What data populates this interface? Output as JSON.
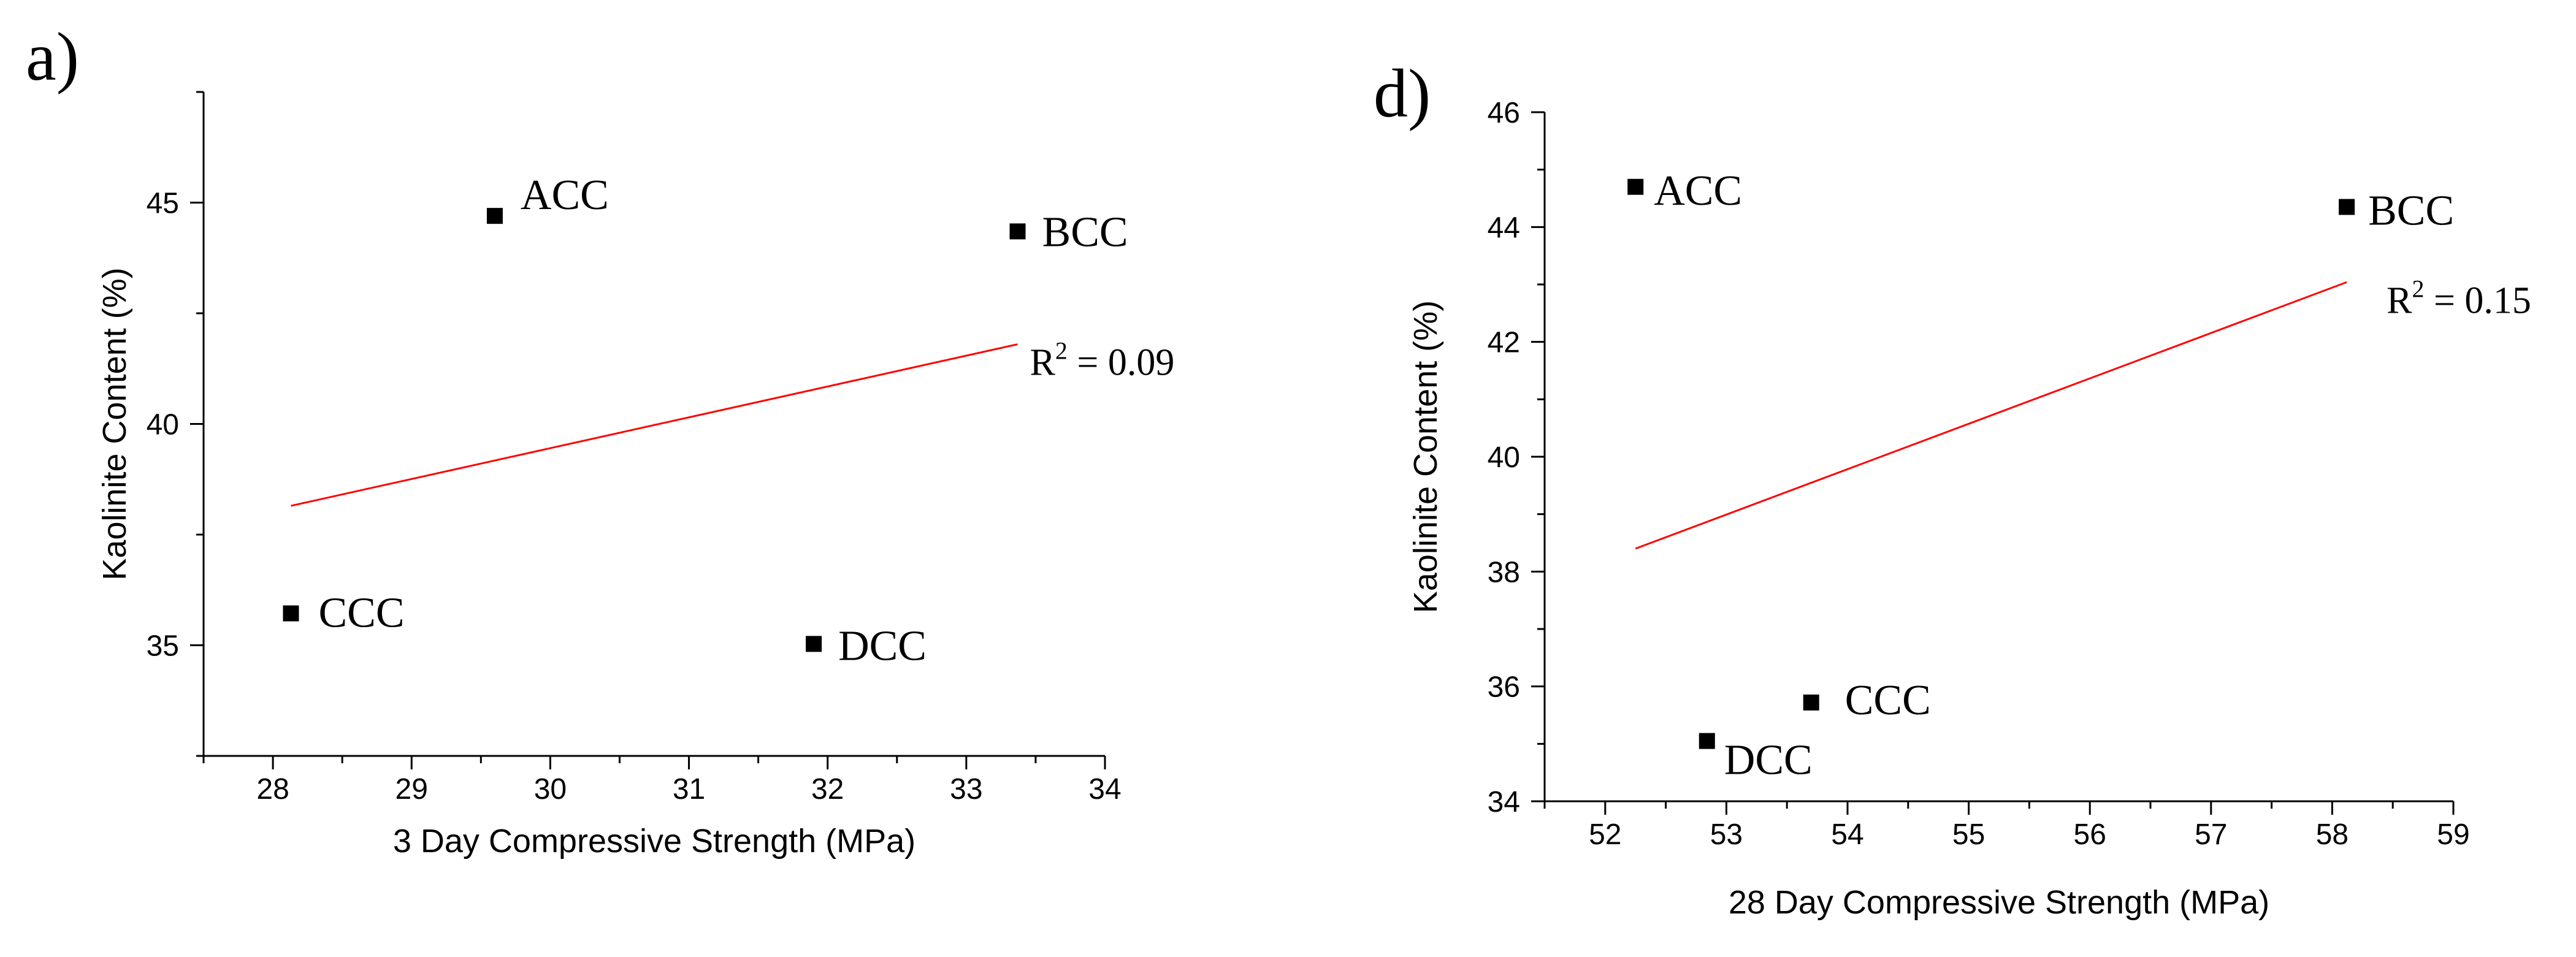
{
  "colors": {
    "trendline": "#ff0000",
    "points": "#000000",
    "axis": "#000000"
  },
  "chart_data": [
    {
      "type": "scatter",
      "panel": "a)",
      "xlabel": "3 Day Compressive Strength (MPa)",
      "ylabel": "Kaolinite Content (%)",
      "xlim": [
        27.5,
        34
      ],
      "ylim": [
        32.5,
        47.5
      ],
      "xticks": [
        28,
        29,
        30,
        31,
        32,
        33,
        34
      ],
      "yticks": [
        35,
        40,
        45
      ],
      "points": [
        {
          "label": "ACC",
          "x": 29.6,
          "y": 44.7
        },
        {
          "label": "BCC",
          "x": 33.37,
          "y": 44.35
        },
        {
          "label": "CCC",
          "x": 28.13,
          "y": 35.72
        },
        {
          "label": "DCC",
          "x": 31.9,
          "y": 35.03
        }
      ],
      "trendline": {
        "x": [
          28.13,
          33.37
        ],
        "y": [
          38.15,
          41.8
        ]
      },
      "r2_label": "R",
      "r2_sup": "2",
      "r2_value": " = 0.09"
    },
    {
      "type": "scatter",
      "panel": "d)",
      "xlabel": "28 Day Compressive Strength (MPa)",
      "ylabel": "Kaolinite Content (%)",
      "xlim": [
        51.5,
        59
      ],
      "ylim": [
        34,
        46
      ],
      "xticks": [
        52,
        53,
        54,
        55,
        56,
        57,
        58,
        59
      ],
      "yticks": [
        34,
        36,
        38,
        40,
        42,
        44,
        46
      ],
      "points": [
        {
          "label": "ACC",
          "x": 52.25,
          "y": 44.7
        },
        {
          "label": "BCC",
          "x": 58.12,
          "y": 44.35
        },
        {
          "label": "CCC",
          "x": 53.7,
          "y": 35.72
        },
        {
          "label": "DCC",
          "x": 52.84,
          "y": 35.05
        }
      ],
      "trendline": {
        "x": [
          52.25,
          58.12
        ],
        "y": [
          38.4,
          43.04
        ]
      },
      "r2_label": "R",
      "r2_sup": "2",
      "r2_value": " = 0.15"
    }
  ]
}
